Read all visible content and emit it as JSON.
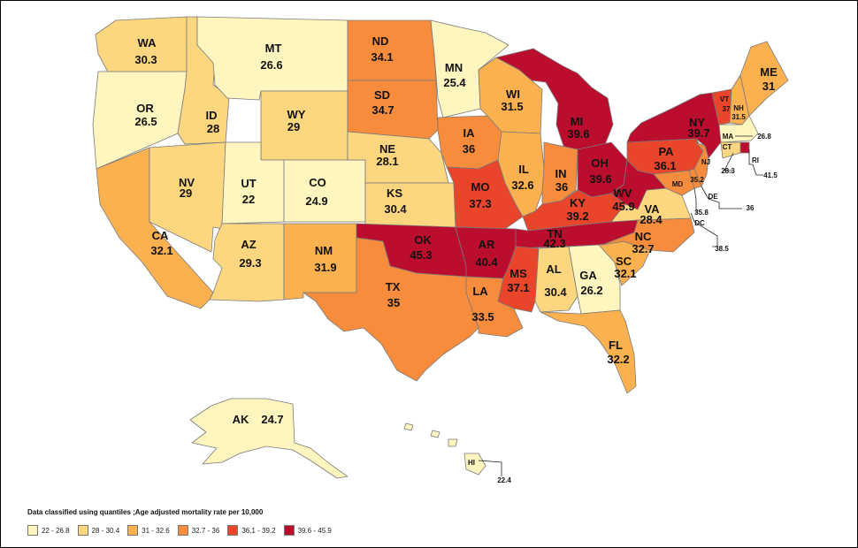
{
  "legend": {
    "title": "Data classified using quantiles ;Age adjusted mortality rate per 10,000",
    "items": [
      {
        "label": "22 - 26.8",
        "color": "#fff5bf"
      },
      {
        "label": "28 - 30.4",
        "color": "#fdd680"
      },
      {
        "label": "31 - 32.6",
        "color": "#fbb150"
      },
      {
        "label": "32.7 - 36",
        "color": "#f68c3c"
      },
      {
        "label": "36.1 - 39.2",
        "color": "#e9452b"
      },
      {
        "label": "39.6 - 45.9",
        "color": "#bb0d2d"
      }
    ]
  },
  "states": [
    {
      "abbr": "WA",
      "value": "30.3",
      "color": "#fdd680"
    },
    {
      "abbr": "OR",
      "value": "26.5",
      "color": "#fff5bf"
    },
    {
      "abbr": "CA",
      "value": "32.1",
      "color": "#fbb150"
    },
    {
      "abbr": "ID",
      "value": "28",
      "color": "#fdd680"
    },
    {
      "abbr": "NV",
      "value": "29",
      "color": "#fdd680"
    },
    {
      "abbr": "MT",
      "value": "26.6",
      "color": "#fff5bf"
    },
    {
      "abbr": "WY",
      "value": "29",
      "color": "#fdd680"
    },
    {
      "abbr": "UT",
      "value": "22",
      "color": "#fff5bf"
    },
    {
      "abbr": "CO",
      "value": "24.9",
      "color": "#fff5bf"
    },
    {
      "abbr": "AZ",
      "value": "29.3",
      "color": "#fdd680"
    },
    {
      "abbr": "NM",
      "value": "31.9",
      "color": "#fbb150"
    },
    {
      "abbr": "ND",
      "value": "34.1",
      "color": "#f68c3c"
    },
    {
      "abbr": "SD",
      "value": "34.7",
      "color": "#f68c3c"
    },
    {
      "abbr": "NE",
      "value": "28.1",
      "color": "#fdd680"
    },
    {
      "abbr": "KS",
      "value": "30.4",
      "color": "#fdd680"
    },
    {
      "abbr": "OK",
      "value": "45.3",
      "color": "#bb0d2d"
    },
    {
      "abbr": "TX",
      "value": "35",
      "color": "#f68c3c"
    },
    {
      "abbr": "MN",
      "value": "25.4",
      "color": "#fff5bf"
    },
    {
      "abbr": "IA",
      "value": "36",
      "color": "#f68c3c"
    },
    {
      "abbr": "MO",
      "value": "37.3",
      "color": "#e9452b"
    },
    {
      "abbr": "AR",
      "value": "40.4",
      "color": "#bb0d2d"
    },
    {
      "abbr": "LA",
      "value": "33.5",
      "color": "#f68c3c"
    },
    {
      "abbr": "WI",
      "value": "31.5",
      "color": "#fbb150"
    },
    {
      "abbr": "IL",
      "value": "32.6",
      "color": "#fbb150"
    },
    {
      "abbr": "MI",
      "value": "39.6",
      "color": "#bb0d2d"
    },
    {
      "abbr": "IN",
      "value": "36",
      "color": "#f68c3c"
    },
    {
      "abbr": "OH",
      "value": "39.6",
      "color": "#bb0d2d"
    },
    {
      "abbr": "KY",
      "value": "39.2",
      "color": "#e9452b"
    },
    {
      "abbr": "TN",
      "value": "42.3",
      "color": "#bb0d2d"
    },
    {
      "abbr": "MS",
      "value": "37.1",
      "color": "#e9452b"
    },
    {
      "abbr": "AL",
      "value": "30.4",
      "color": "#fdd680"
    },
    {
      "abbr": "GA",
      "value": "26.2",
      "color": "#fff5bf"
    },
    {
      "abbr": "FL",
      "value": "32.2",
      "color": "#fbb150"
    },
    {
      "abbr": "SC",
      "value": "32.1",
      "color": "#fbb150"
    },
    {
      "abbr": "NC",
      "value": "32.7",
      "color": "#f68c3c"
    },
    {
      "abbr": "VA",
      "value": "28.4",
      "color": "#fdd680"
    },
    {
      "abbr": "WV",
      "value": "45.9",
      "color": "#bb0d2d"
    },
    {
      "abbr": "PA",
      "value": "36.1",
      "color": "#e9452b"
    },
    {
      "abbr": "NY",
      "value": "39.7",
      "color": "#bb0d2d"
    },
    {
      "abbr": "VT",
      "value": "37",
      "color": "#e9452b"
    },
    {
      "abbr": "NH",
      "value": "31.5",
      "color": "#fbb150"
    },
    {
      "abbr": "ME",
      "value": "31",
      "color": "#fbb150"
    },
    {
      "abbr": "MA",
      "value": "26.8",
      "color": "#fff5bf"
    },
    {
      "abbr": "RI",
      "value": "41.5",
      "color": "#bb0d2d"
    },
    {
      "abbr": "CT",
      "value": "28.3",
      "color": "#fdd680"
    },
    {
      "abbr": "NJ",
      "value": "35.2",
      "color": "#f68c3c"
    },
    {
      "abbr": "DE",
      "value": "36",
      "color": "#f68c3c"
    },
    {
      "abbr": "MD",
      "value": "35.8",
      "color": "#f68c3c"
    },
    {
      "abbr": "DC",
      "value": "38.5",
      "color": "#e9452b"
    },
    {
      "abbr": "AK",
      "value": "24.7",
      "color": "#fff5bf"
    },
    {
      "abbr": "HI",
      "value": "22.4",
      "color": "#fff5bf"
    }
  ]
}
